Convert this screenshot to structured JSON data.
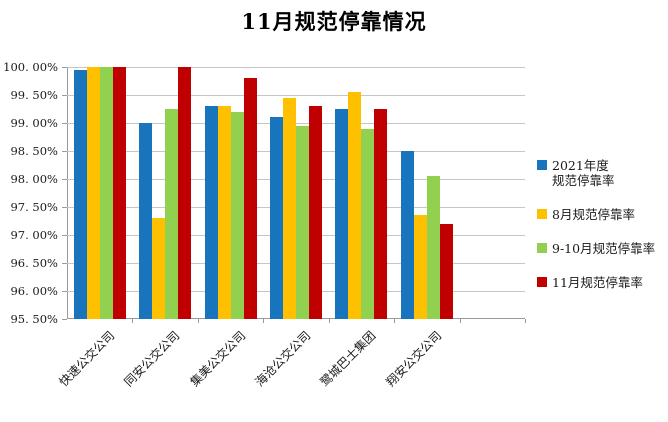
{
  "chart_data": {
    "type": "bar",
    "title": "11月规范停靠情况",
    "categories": [
      "快速公交公司",
      "同安公交公司",
      "集美公交公司",
      "海沧公交公司",
      "鹭城巴士集团",
      "翔安公交公司"
    ],
    "series": [
      {
        "name": "2021年度\n规范停靠率",
        "color": "#1874BC",
        "values": [
          99.95,
          99.0,
          99.3,
          99.1,
          99.25,
          98.5
        ]
      },
      {
        "name": "8月规范停靠率",
        "color": "#FFC000",
        "values": [
          100.0,
          97.3,
          99.3,
          99.45,
          99.55,
          97.35
        ]
      },
      {
        "name": "9-10月规范停靠率",
        "color": "#92D050",
        "values": [
          100.0,
          99.25,
          99.2,
          98.95,
          98.9,
          98.05
        ]
      },
      {
        "name": "11月规范停靠率",
        "color": "#C00000",
        "values": [
          100.0,
          100.0,
          99.8,
          99.3,
          99.25,
          97.2
        ]
      }
    ],
    "ylim": [
      95.5,
      100.0
    ],
    "y_tick_step": 0.5,
    "y_tick_labels": [
      "100. 00%",
      "99. 50%",
      "99. 00%",
      "98. 50%",
      "98. 00%",
      "97. 50%",
      "97. 00%",
      "96. 50%",
      "96. 00%",
      "95. 50%"
    ],
    "grid": "horizontal",
    "legend_position": "right",
    "x_slot_count": 7,
    "colors": {
      "axis": "#9a9a9a",
      "gridline": "#c6c6c6",
      "text": "#1a1a1a",
      "background": "#ffffff"
    }
  }
}
